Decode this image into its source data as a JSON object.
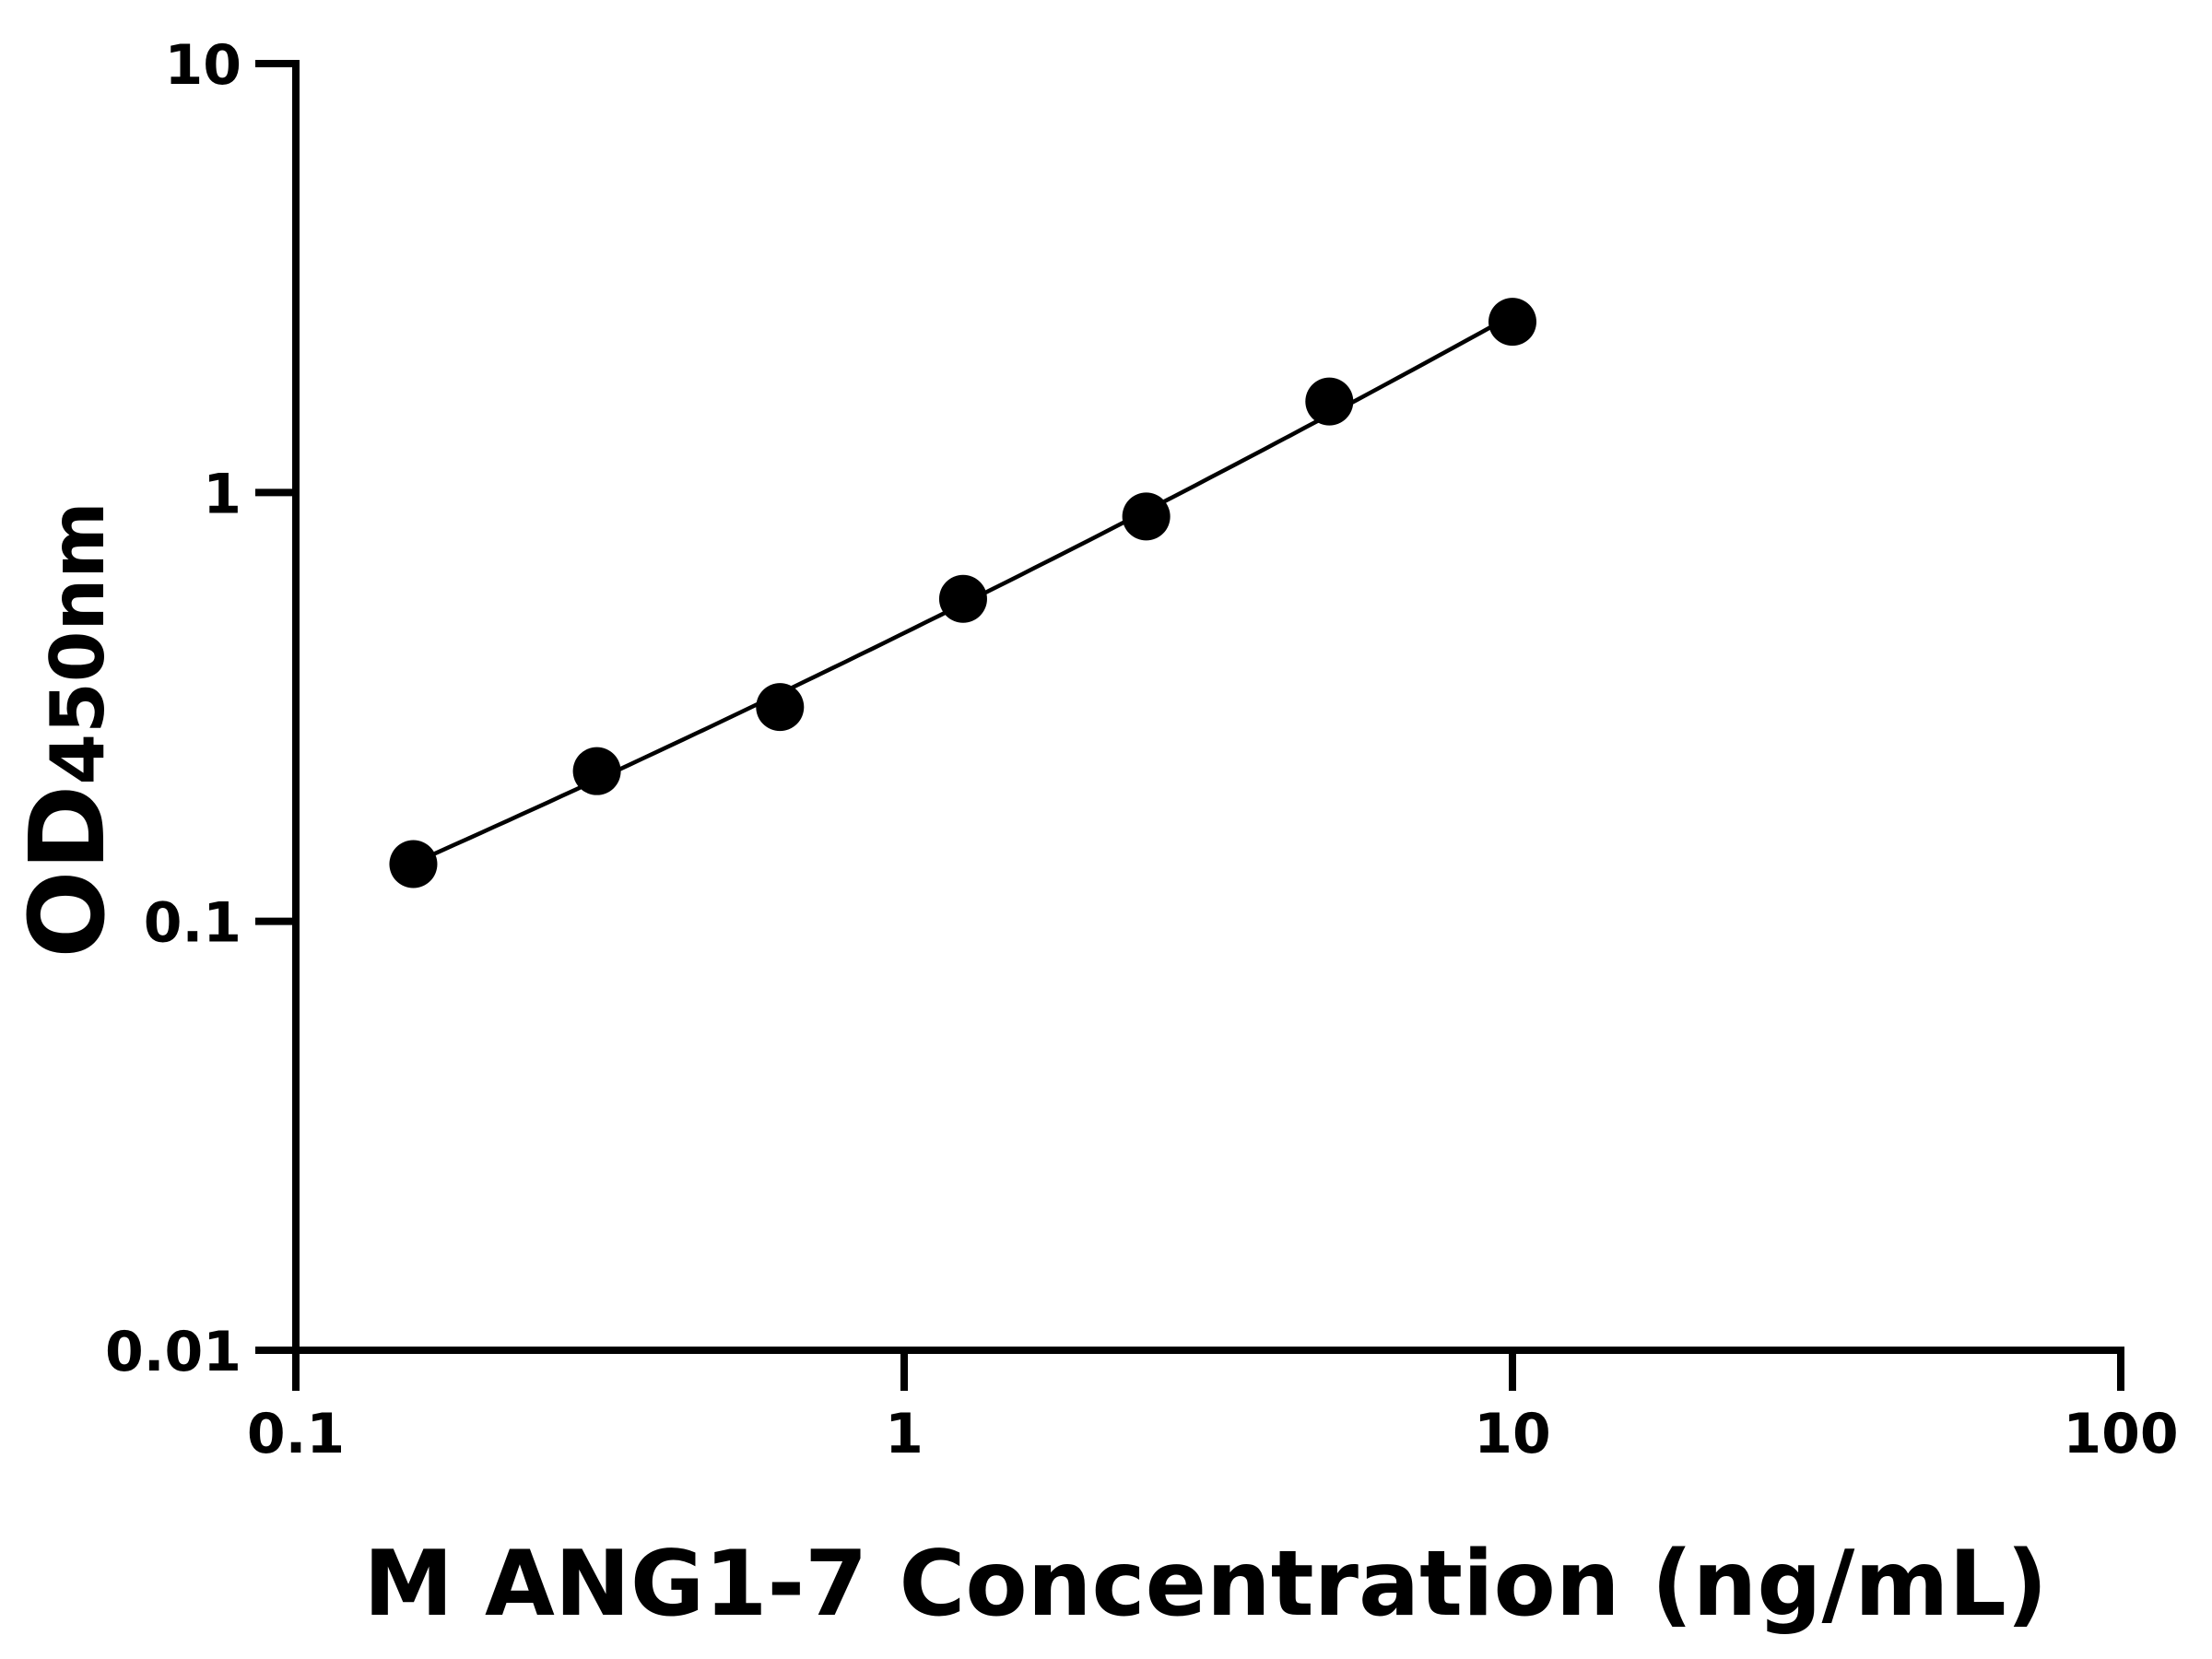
{
  "chart_data": {
    "type": "scatter",
    "title": "",
    "xlabel": "M ANG1-7 Concentration (ng/mL)",
    "ylabel": {
      "main": "OD",
      "subscript": "450nm"
    },
    "xscale": "log",
    "yscale": "log",
    "xlim": [
      0.1,
      100
    ],
    "ylim": [
      0.01,
      10
    ],
    "xticks": [
      "0.1",
      "1",
      "10",
      "100"
    ],
    "yticks": [
      "0.01",
      "0.1",
      "1",
      "10"
    ],
    "grid": false,
    "legend": "none",
    "series": [
      {
        "x": [
          0.156,
          0.3125,
          0.625,
          1.25,
          2.5,
          5,
          10
        ],
        "y": [
          0.136,
          0.224,
          0.316,
          0.565,
          0.879,
          1.63,
          2.5
        ],
        "marker": "filled-circle",
        "color": "#000000",
        "fit_curve": true
      }
    ]
  }
}
